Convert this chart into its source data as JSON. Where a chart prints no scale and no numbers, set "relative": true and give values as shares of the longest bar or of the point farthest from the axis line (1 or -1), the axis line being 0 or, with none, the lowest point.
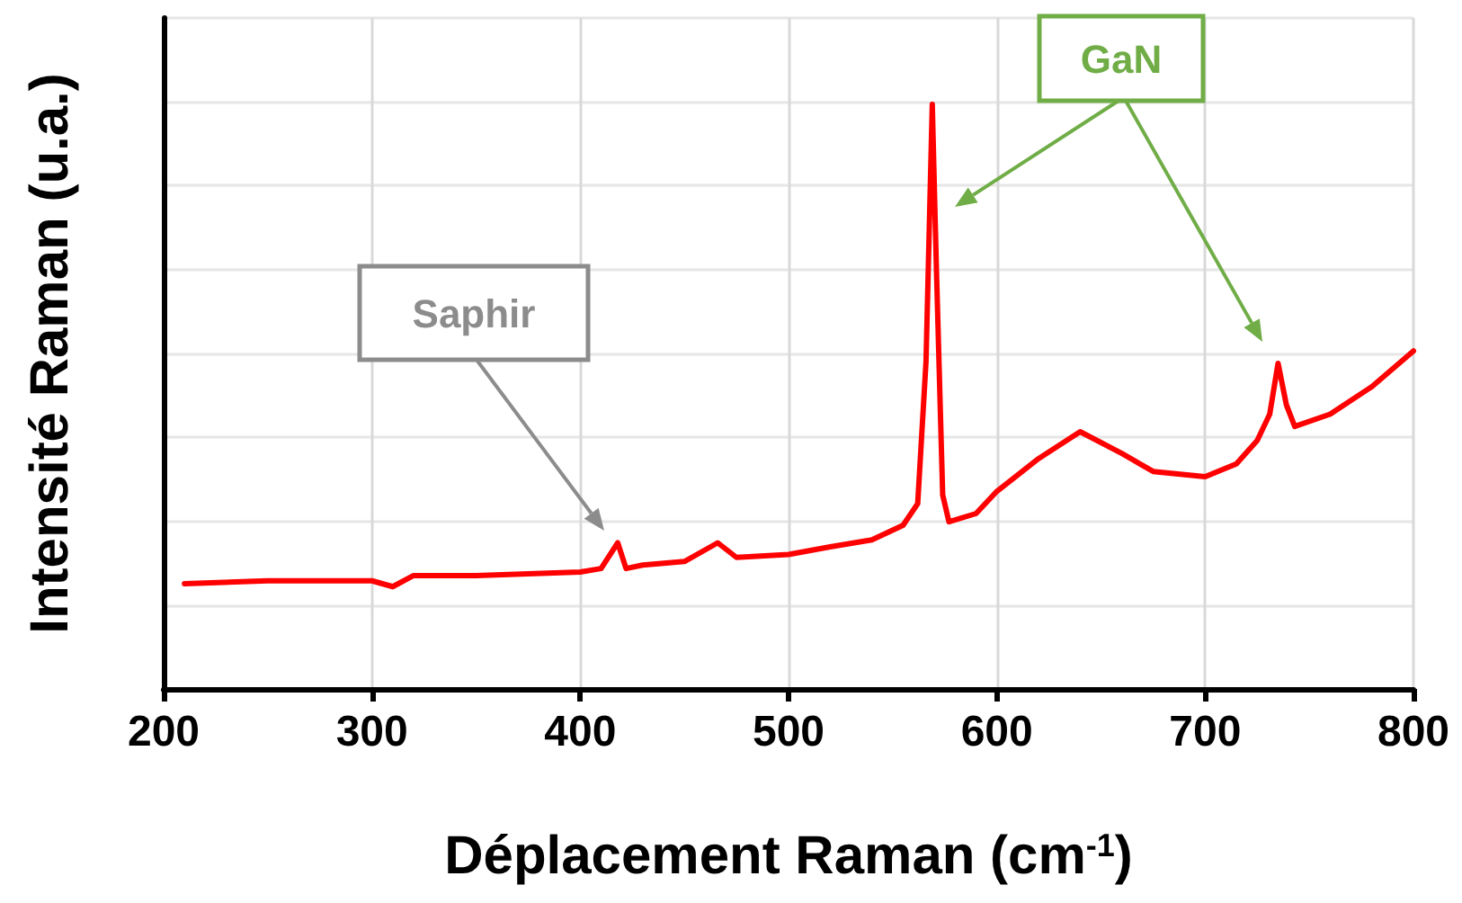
{
  "chart_data": {
    "type": "line",
    "relative": true,
    "xlabel": "Déplacement Raman (cm$^{-1}$)",
    "ylabel": "Intensité Raman (u.a.)",
    "xlim": [
      200,
      800
    ],
    "xticks": [
      200,
      300,
      400,
      500,
      600,
      700,
      800
    ],
    "grid": true,
    "marker": "none",
    "line_style": "solid",
    "annotations": [
      "Saphir",
      "GaN"
    ],
    "series": [
      {
        "color": "#ff0000",
        "x": [
          210,
          250,
          300,
          310,
          320,
          350,
          400,
          410,
          418,
          422,
          430,
          450,
          466,
          475,
          500,
          520,
          540,
          555,
          562,
          566,
          569,
          571,
          574,
          577,
          590,
          600,
          620,
          640,
          660,
          675,
          700,
          715,
          725,
          731,
          735,
          739,
          743,
          760,
          780,
          800
        ],
        "values": [
          0.18,
          0.185,
          0.185,
          0.175,
          0.194,
          0.194,
          0.2,
          0.206,
          0.25,
          0.206,
          0.212,
          0.218,
          0.25,
          0.225,
          0.23,
          0.243,
          0.255,
          0.28,
          0.317,
          0.56,
          1.0,
          0.717,
          0.332,
          0.286,
          0.3,
          0.338,
          0.394,
          0.44,
          0.403,
          0.372,
          0.363,
          0.385,
          0.425,
          0.47,
          0.557,
          0.486,
          0.449,
          0.47,
          0.517,
          0.578
        ]
      }
    ]
  }
}
